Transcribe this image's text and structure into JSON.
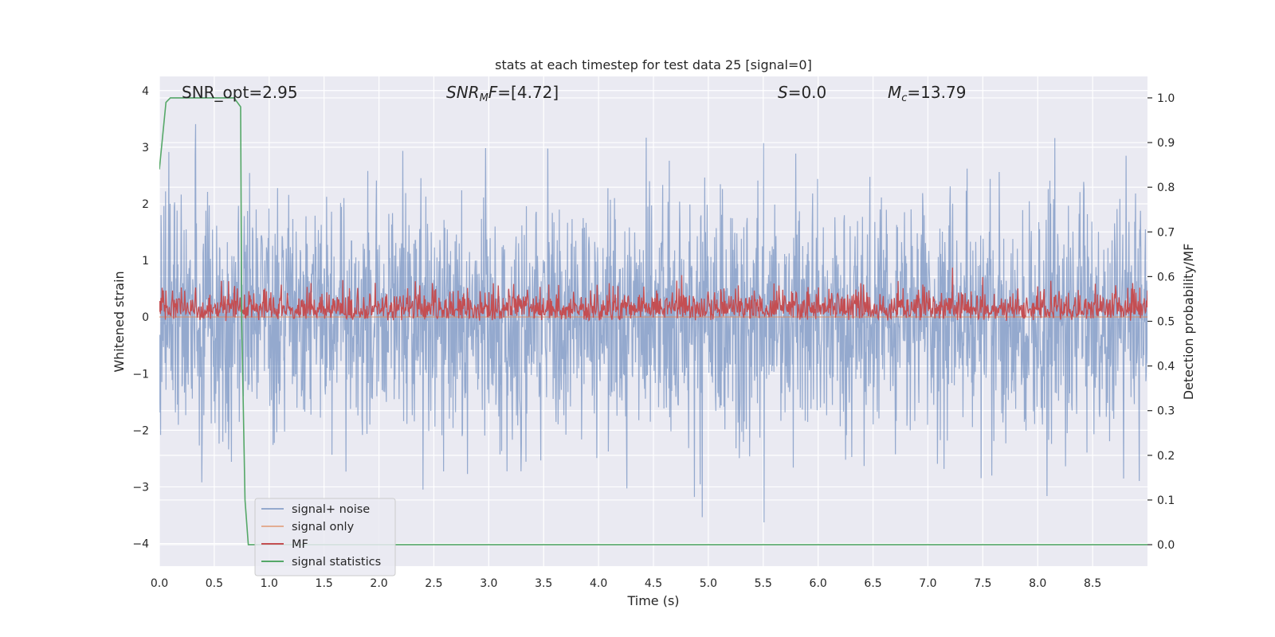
{
  "chart_data": {
    "type": "line",
    "title": "stats at each timestep for test data 25 [signal=0]",
    "xlabel": "Time (s)",
    "ylabel_left": "Whitened strain",
    "ylabel_right": "Detection probability/MF",
    "xlim": [
      0.0,
      9.0
    ],
    "ylim_left": [
      -4.4,
      4.25
    ],
    "ylim_right": [
      -0.048,
      1.048
    ],
    "x_ticks": [
      0.0,
      0.5,
      1.0,
      1.5,
      2.0,
      2.5,
      3.0,
      3.5,
      4.0,
      4.5,
      5.0,
      5.5,
      6.0,
      6.5,
      7.0,
      7.5,
      8.0,
      8.5
    ],
    "x_tick_labels": [
      "0.0",
      "0.5",
      "1.0",
      "1.5",
      "2.0",
      "2.5",
      "3.0",
      "3.5",
      "4.0",
      "4.5",
      "5.0",
      "5.5",
      "6.0",
      "6.5",
      "7.0",
      "7.5",
      "8.0",
      "8.5"
    ],
    "y_ticks_left": [
      -4,
      -3,
      -2,
      -1,
      0,
      1,
      2,
      3,
      4
    ],
    "y_tick_labels_left": [
      "−4",
      "−3",
      "−2",
      "−1",
      "0",
      "1",
      "2",
      "3",
      "4"
    ],
    "y_ticks_right": [
      0.0,
      0.1,
      0.2,
      0.3,
      0.4,
      0.5,
      0.6,
      0.7,
      0.8,
      0.9,
      1.0
    ],
    "y_tick_labels_right": [
      "0.0",
      "0.1",
      "0.2",
      "0.3",
      "0.4",
      "0.5",
      "0.6",
      "0.7",
      "0.8",
      "0.9",
      "1.0"
    ],
    "grid": true,
    "legend_position": "lower-left",
    "annotations": [
      {
        "id": "snr-opt",
        "text": "SNR_opt=2.95"
      },
      {
        "id": "snr-mf",
        "text": "SNR_MF=[4.72]"
      },
      {
        "id": "s-value",
        "text": "S=0.0"
      },
      {
        "id": "mc-value",
        "text": "M_c=13.79"
      }
    ],
    "series": [
      {
        "name": "signal+ noise",
        "axis": "left",
        "color": "#4c72b0",
        "opacity": 0.55,
        "description": "whitened noise, amplitude roughly within -3 to +3.9, no visible signal",
        "summary": {
          "mean": 0.0,
          "typical_min": -2.5,
          "typical_max": 2.5,
          "peak_max": 3.9,
          "peak_min": -4.0
        }
      },
      {
        "name": "signal only",
        "axis": "left",
        "color": "#dd8452",
        "opacity": 0.6,
        "description": "zero (signal=0)",
        "x": [
          0.0,
          9.0
        ],
        "y": [
          0.0,
          0.0
        ]
      },
      {
        "name": "MF",
        "axis": "right",
        "color": "#c44e52",
        "description": "matched filter output fluctuating between ~0.50 and ~0.62",
        "summary": {
          "min": 0.5,
          "typical_max": 0.58,
          "peak_max": 0.625
        }
      },
      {
        "name": "signal statistics",
        "axis": "right",
        "color": "#55a868",
        "x": [
          0.0,
          0.06,
          0.1,
          0.2,
          0.4,
          0.6,
          0.68,
          0.74,
          0.75,
          0.78,
          0.81,
          1.0,
          2.0,
          3.0,
          4.0,
          5.0,
          6.0,
          7.0,
          8.0,
          9.0
        ],
        "y": [
          0.84,
          0.99,
          1.0,
          1.0,
          1.0,
          1.0,
          1.0,
          0.98,
          0.5,
          0.1,
          0.0,
          0.0,
          0.0,
          0.0,
          0.0,
          0.0,
          0.0,
          0.0,
          0.0,
          0.0
        ]
      }
    ]
  },
  "legend": [
    {
      "label": "signal+ noise",
      "color": "#4c72b0",
      "opacity": 0.55
    },
    {
      "label": "signal only",
      "color": "#dd8452",
      "opacity": 0.6
    },
    {
      "label": "MF",
      "color": "#c44e52",
      "opacity": 1
    },
    {
      "label": "signal statistics",
      "color": "#55a868",
      "opacity": 1
    }
  ],
  "colors": {
    "plot_background": "#eaeaf2",
    "grid": "#ffffff",
    "black_marker": "#000000"
  }
}
